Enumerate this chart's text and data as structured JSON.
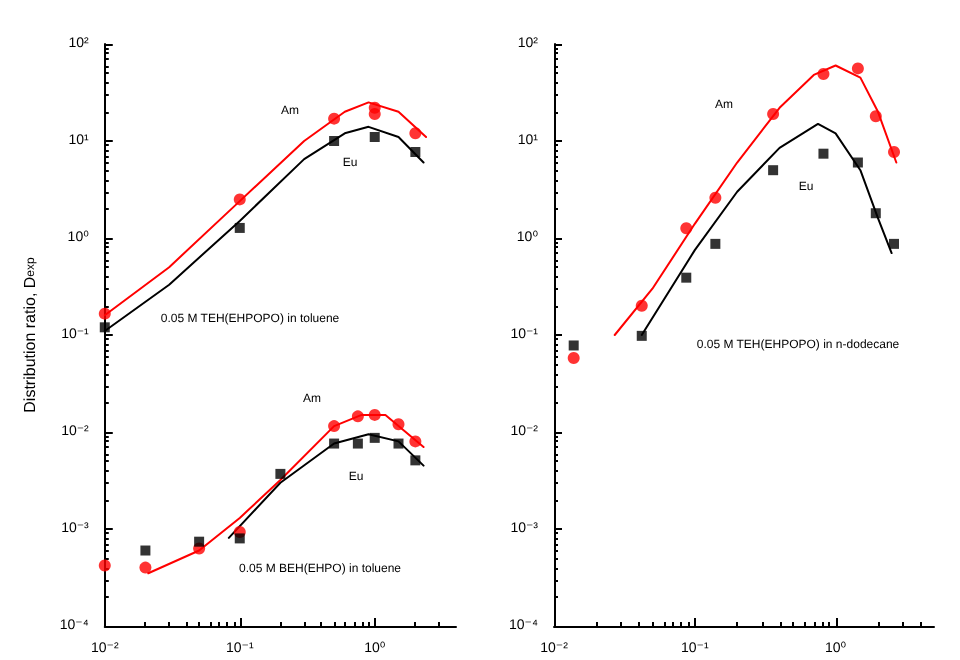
{
  "chart_data": [
    {
      "type": "scatter",
      "ylabel": "Distribution ratio, D$_{exp}$",
      "log": "xy",
      "grid": false,
      "xlim": [
        0.01,
        4
      ],
      "xticks": [
        {
          "value": 0.01,
          "label": "10⁻²"
        },
        {
          "value": 0.1,
          "label": "10⁻¹"
        },
        {
          "value": 1,
          "label": "10⁰"
        }
      ],
      "ylim": [
        0.0001,
        100
      ],
      "yticks": [
        {
          "value": 0.0001,
          "label": "10⁻⁴"
        },
        {
          "value": 0.001,
          "label": "10⁻³"
        },
        {
          "value": 0.01,
          "label": "10⁻²"
        },
        {
          "value": 0.1,
          "label": "10⁻¹"
        },
        {
          "value": 1,
          "label": "10⁰"
        },
        {
          "value": 10,
          "label": "10¹"
        },
        {
          "value": 100,
          "label": "10²"
        }
      ],
      "series": [
        {
          "color": "#ff0000",
          "marker": "circle",
          "x": [
            0.01,
            0.1,
            0.5,
            1,
            1,
            2
          ],
          "values": [
            0.166,
            2.5,
            17,
            19,
            22,
            12
          ]
        },
        {
          "color": "#000000",
          "marker": "square",
          "x": [
            0.01,
            0.1,
            0.5,
            1,
            2
          ],
          "values": [
            0.12,
            1.27,
            10,
            11,
            7.7
          ]
        },
        {
          "type": "line",
          "color": "#ff0000",
          "marker": "none",
          "line_style": "solid",
          "x": [
            0.01,
            0.03,
            0.1,
            0.3,
            0.6,
            0.9,
            1.5,
            2.4
          ],
          "values": [
            0.16,
            0.5,
            2.4,
            10,
            20,
            25,
            20,
            11
          ]
        },
        {
          "type": "line",
          "color": "#000000",
          "marker": "none",
          "line_style": "solid",
          "x": [
            0.01,
            0.03,
            0.1,
            0.3,
            0.6,
            0.9,
            1.5,
            2.3
          ],
          "values": [
            0.11,
            0.33,
            1.5,
            6.5,
            12,
            14,
            11,
            6
          ]
        },
        {
          "color": "#ff0000",
          "marker": "circle",
          "x": [
            0.01,
            0.02,
            0.05,
            0.1,
            0.5,
            0.75,
            1,
            1.5,
            2
          ],
          "values": [
            0.00042,
            0.0004,
            0.00063,
            0.00093,
            0.0115,
            0.0145,
            0.015,
            0.012,
            0.008
          ]
        },
        {
          "color": "#000000",
          "marker": "square",
          "x": [
            0.02,
            0.05,
            0.1,
            0.2,
            0.5,
            0.75,
            1,
            1.5,
            2
          ],
          "values": [
            0.0006,
            0.00074,
            0.0008,
            0.0037,
            0.0076,
            0.0076,
            0.0087,
            0.0076,
            0.0051
          ]
        },
        {
          "type": "line",
          "color": "#ff0000",
          "marker": "none",
          "line_style": "solid",
          "x": [
            0.021,
            0.05,
            0.1,
            0.2,
            0.5,
            0.8,
            1.2,
            2.3
          ],
          "values": [
            0.00035,
            0.0006,
            0.0013,
            0.0032,
            0.0115,
            0.015,
            0.015,
            0.007
          ]
        },
        {
          "type": "line",
          "color": "#000000",
          "marker": "none",
          "line_style": "solid",
          "x": [
            0.083,
            0.2,
            0.5,
            0.9,
            1.5,
            2.3
          ],
          "values": [
            0.00081,
            0.003,
            0.0076,
            0.0095,
            0.008,
            0.0045
          ]
        }
      ],
      "annotations": [
        "Am",
        "Eu",
        "0.05 M TEH(EHPOPO) in toluene",
        "Am",
        "Eu",
        "0.05 M BEH(EHPO) in toluene"
      ]
    },
    {
      "type": "scatter",
      "log": "xy",
      "grid": false,
      "xlim": [
        0.01,
        5
      ],
      "xticks": [
        {
          "value": 0.01,
          "label": "10⁻²"
        },
        {
          "value": 0.1,
          "label": "10⁻¹"
        },
        {
          "value": 1,
          "label": "10⁰"
        }
      ],
      "ylim": [
        0.0001,
        100
      ],
      "yticks": [
        {
          "value": 0.0001,
          "label": "10⁻⁴"
        },
        {
          "value": 0.001,
          "label": "10⁻³"
        },
        {
          "value": 0.01,
          "label": "10⁻²"
        },
        {
          "value": 0.1,
          "label": "10⁻¹"
        },
        {
          "value": 1,
          "label": "10⁰"
        },
        {
          "value": 10,
          "label": "10¹"
        },
        {
          "value": 100,
          "label": "10²"
        }
      ],
      "series": [
        {
          "color": "#ff0000",
          "marker": "circle",
          "x": [
            0.0138,
            0.042,
            0.087,
            0.14,
            0.36,
            0.82,
            1.44,
            1.93,
            2.6
          ],
          "values": [
            0.058,
            0.2,
            1.26,
            2.6,
            19,
            49,
            56,
            18,
            7.7
          ]
        },
        {
          "color": "#000000",
          "marker": "square",
          "x": [
            0.0138,
            0.042,
            0.087,
            0.14,
            0.36,
            0.82,
            1.44,
            1.93,
            2.6
          ],
          "values": [
            0.078,
            0.098,
            0.39,
            0.87,
            5,
            7.4,
            6,
            1.8,
            0.87
          ]
        },
        {
          "type": "line",
          "color": "#ff0000",
          "marker": "none",
          "line_style": "solid",
          "x": [
            0.027,
            0.05,
            0.1,
            0.2,
            0.4,
            0.7,
            1,
            1.5,
            2,
            2.7
          ],
          "values": [
            0.1,
            0.3,
            1.4,
            6,
            22,
            48,
            60,
            45,
            20,
            6
          ]
        },
        {
          "type": "line",
          "color": "#000000",
          "marker": "none",
          "line_style": "solid",
          "x": [
            0.042,
            0.1,
            0.2,
            0.4,
            0.75,
            1,
            1.5,
            2,
            2.5
          ],
          "values": [
            0.1,
            0.75,
            3,
            8.5,
            15,
            12,
            5,
            1.6,
            0.7
          ]
        }
      ],
      "annotations": [
        "Am",
        "Eu",
        "0.05 M TEH(EHPOPO) in n-dodecane"
      ]
    }
  ]
}
